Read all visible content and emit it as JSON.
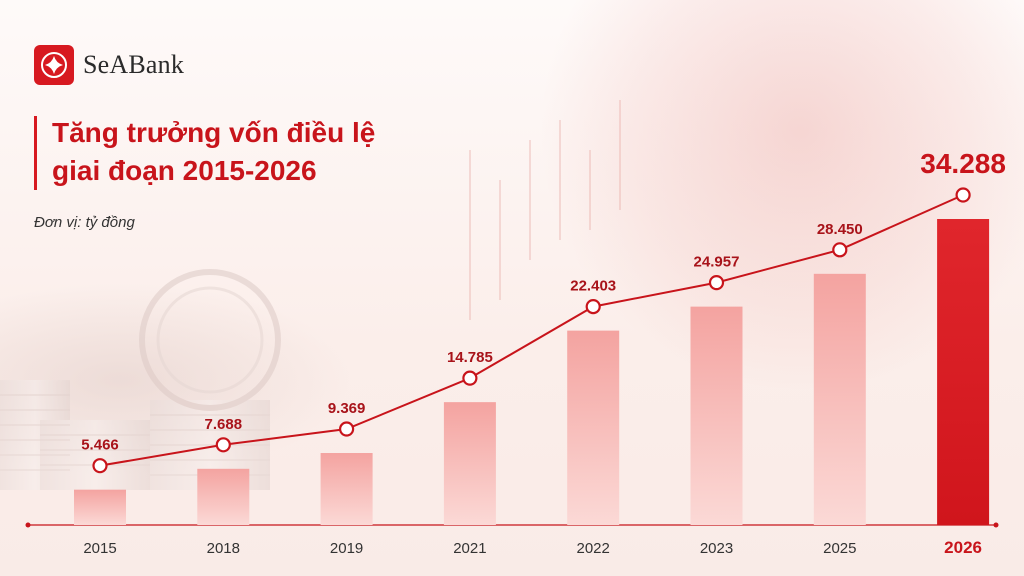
{
  "brand": {
    "name": "SeABank"
  },
  "header": {
    "title_line1": "Tăng trưởng vốn điều lệ",
    "title_line2": "giai đoạn 2015-2026",
    "unit": "Đơn vị: tỷ đồng"
  },
  "colors": {
    "accent": "#d71920",
    "bar_light": "#f4a3a0",
    "bar_highlight": "#d0151c",
    "line": "#c8141b"
  },
  "chart_data": {
    "type": "bar",
    "categories": [
      "2015",
      "2018",
      "2019",
      "2021",
      "2022",
      "2023",
      "2025",
      "2026"
    ],
    "values": [
      5466,
      7688,
      9369,
      14785,
      22403,
      24957,
      28450,
      34288
    ],
    "value_labels": [
      "5.466",
      "7.688",
      "9.369",
      "14.785",
      "22.403",
      "24.957",
      "28.450",
      "34.288"
    ],
    "title": "Tăng trưởng vốn điều lệ giai đoạn 2015-2026",
    "ylabel": "",
    "xlabel": "",
    "highlight_category": "2026",
    "overlay_line": true,
    "grid": false,
    "legend": "none"
  }
}
